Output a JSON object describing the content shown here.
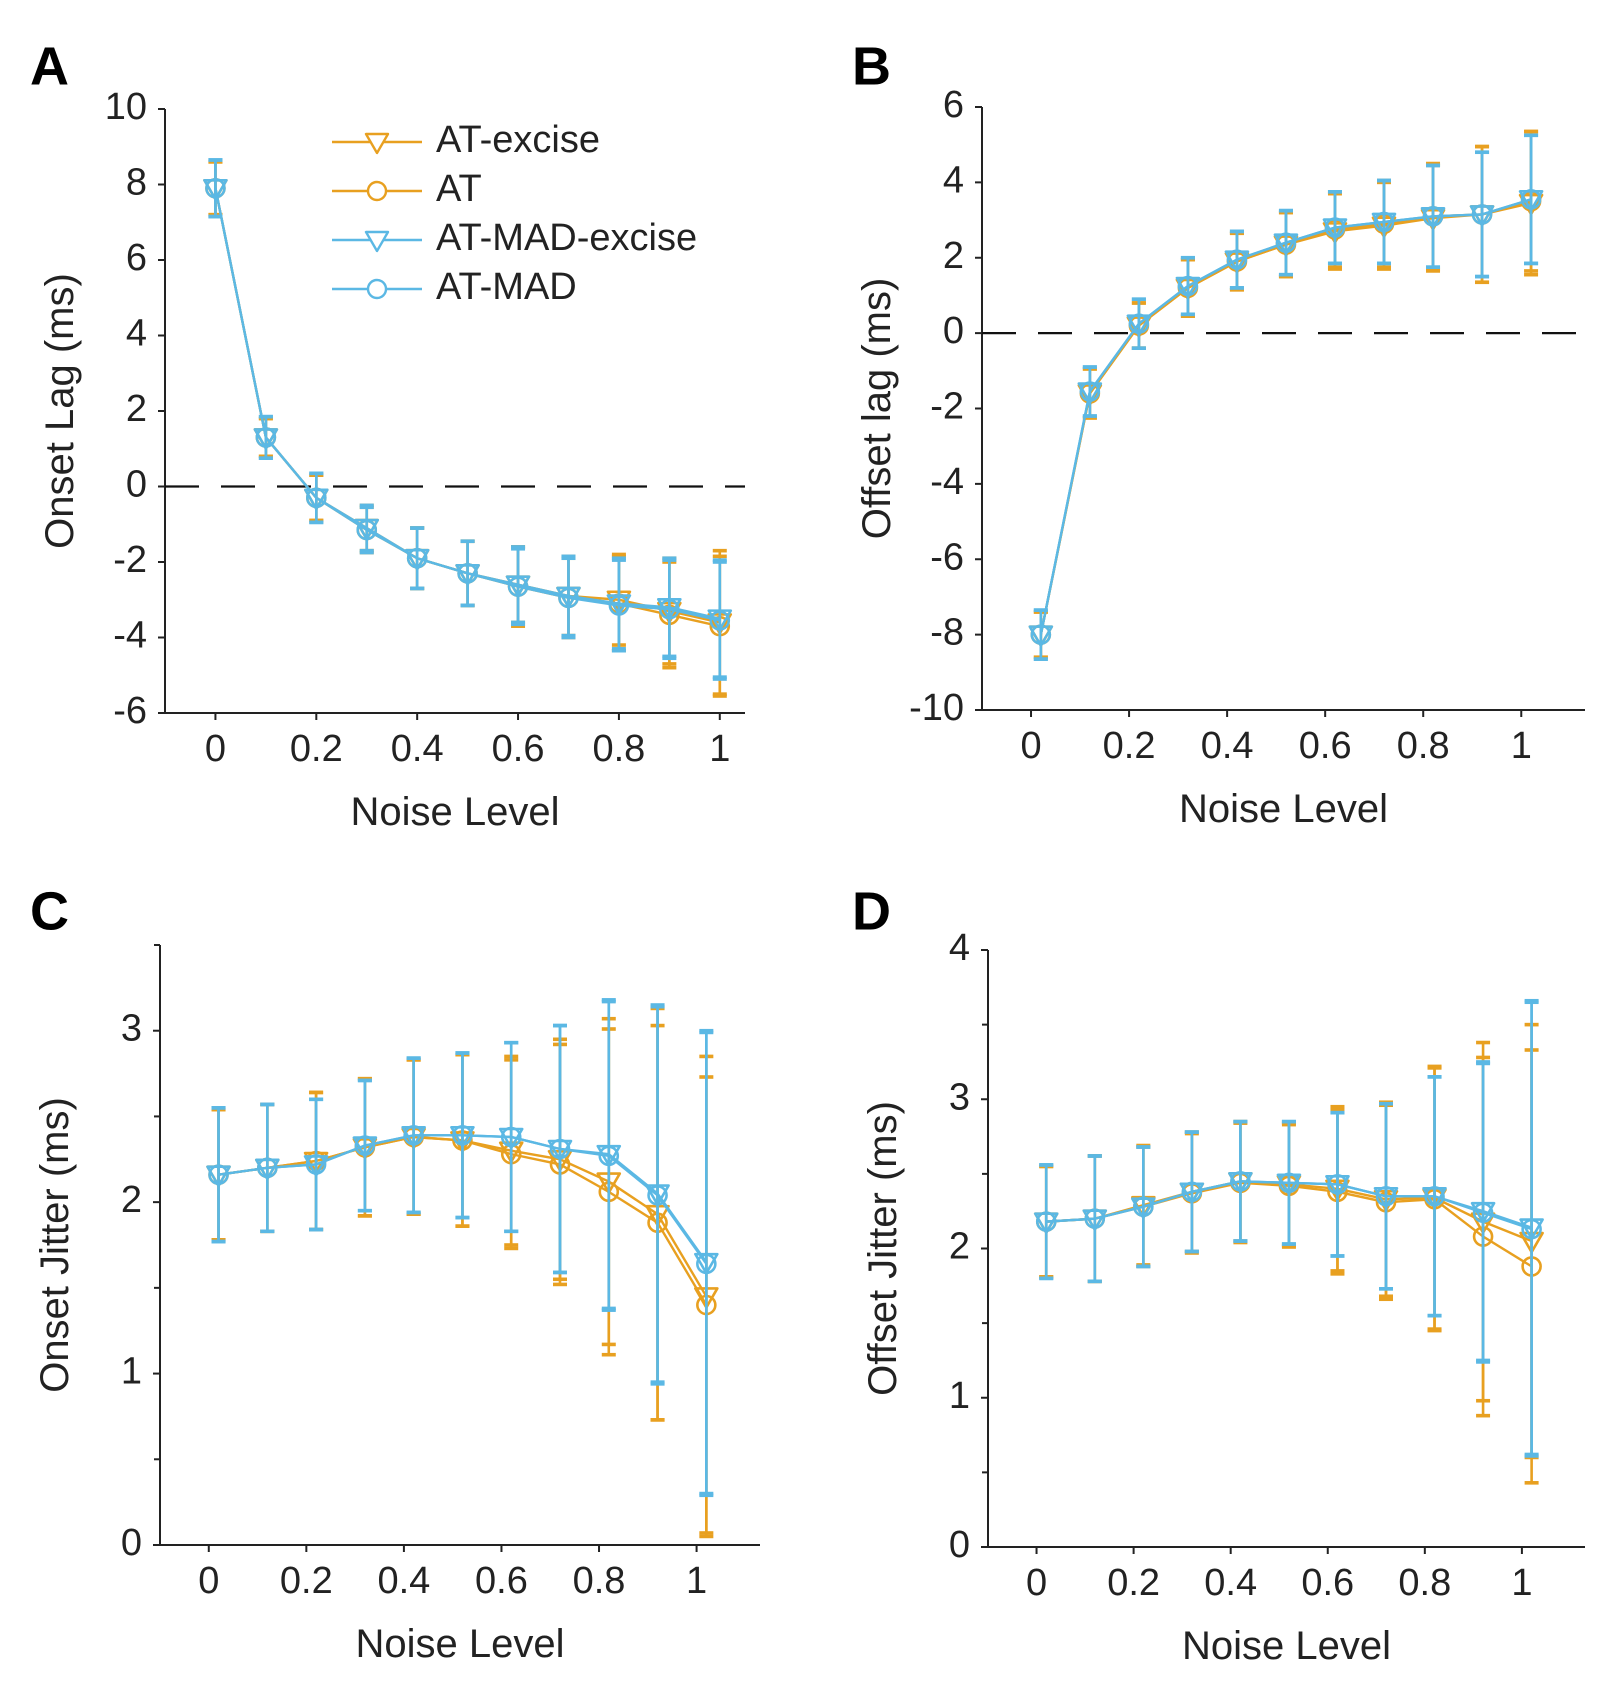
{
  "colors": {
    "orange": "#E8A020",
    "blue": "#5BB8E4"
  },
  "legend": {
    "entries": [
      {
        "label": "AT-excise",
        "color": "orange",
        "marker": "triangle-down"
      },
      {
        "label": "AT",
        "color": "orange",
        "marker": "circle"
      },
      {
        "label": "AT-MAD-excise",
        "color": "blue",
        "marker": "triangle-down"
      },
      {
        "label": "AT-MAD",
        "color": "blue",
        "marker": "circle"
      }
    ]
  },
  "chart_data": [
    {
      "panel": "A",
      "type": "line",
      "xlabel": "Noise Level",
      "ylabel": "Onset Lag (ms)",
      "xlim": [
        -0.1,
        1.05
      ],
      "ylim": [
        -6,
        10
      ],
      "xticks": [
        0,
        0.2,
        0.4,
        0.6,
        0.8,
        1
      ],
      "xtick_labels": [
        "0",
        "0.2",
        "0.4",
        "0.6",
        "0.8",
        "1"
      ],
      "yticks": [
        -6,
        -4,
        -2,
        0,
        2,
        4,
        6,
        8,
        10
      ],
      "ytick_labels": [
        "-6",
        "-4",
        "-2",
        "0",
        "2",
        "4",
        "6",
        "8",
        "10"
      ],
      "minor_yticks": [],
      "zero_line": true,
      "legend": "top-right",
      "x": [
        0,
        0.1,
        0.2,
        0.3,
        0.4,
        0.5,
        0.6,
        0.7,
        0.8,
        0.9,
        1.0
      ],
      "series": [
        {
          "name": "AT-excise",
          "color": "orange",
          "marker": "triangle-down",
          "values": [
            7.9,
            1.3,
            -0.3,
            -1.1,
            -1.9,
            -2.3,
            -2.6,
            -2.9,
            -3.0,
            -3.3,
            -3.6
          ],
          "err": [
            0.7,
            0.5,
            0.6,
            0.6,
            0.8,
            0.85,
            1.0,
            1.05,
            1.2,
            1.4,
            1.9
          ]
        },
        {
          "name": "AT",
          "color": "orange",
          "marker": "circle",
          "values": [
            7.9,
            1.3,
            -0.3,
            -1.15,
            -1.9,
            -2.3,
            -2.65,
            -2.95,
            -3.1,
            -3.4,
            -3.7
          ],
          "err": [
            0.7,
            0.5,
            0.6,
            0.6,
            0.8,
            0.85,
            1.05,
            1.05,
            1.25,
            1.4,
            1.85
          ]
        },
        {
          "name": "AT-MAD-excise",
          "color": "blue",
          "marker": "triangle-down",
          "values": [
            7.9,
            1.3,
            -0.3,
            -1.1,
            -1.9,
            -2.3,
            -2.6,
            -2.9,
            -3.1,
            -3.2,
            -3.5
          ],
          "err": [
            0.75,
            0.55,
            0.65,
            0.6,
            0.8,
            0.85,
            1.0,
            1.05,
            1.2,
            1.3,
            1.55
          ]
        },
        {
          "name": "AT-MAD",
          "color": "blue",
          "marker": "circle",
          "values": [
            7.9,
            1.3,
            -0.3,
            -1.15,
            -1.9,
            -2.3,
            -2.65,
            -2.95,
            -3.15,
            -3.25,
            -3.55
          ],
          "err": [
            0.75,
            0.55,
            0.65,
            0.6,
            0.8,
            0.85,
            1.0,
            1.05,
            1.2,
            1.3,
            1.55
          ]
        }
      ]
    },
    {
      "panel": "B",
      "type": "line",
      "xlabel": "Noise Level",
      "ylabel": "Offset lag (ms)",
      "xlim": [
        -0.1,
        1.13
      ],
      "ylim": [
        -10,
        6
      ],
      "xticks": [
        0,
        0.2,
        0.4,
        0.6,
        0.8,
        1
      ],
      "xtick_labels": [
        "0",
        "0.2",
        "0.4",
        "0.6",
        "0.8",
        "1"
      ],
      "yticks": [
        -10,
        -8,
        -6,
        -4,
        -2,
        0,
        2,
        4,
        6
      ],
      "ytick_labels": [
        "-10",
        "-8",
        "-6",
        "-4",
        "-2",
        "0",
        "2",
        "4",
        "6"
      ],
      "minor_yticks": [],
      "zero_line": true,
      "x": [
        0.02,
        0.12,
        0.22,
        0.32,
        0.42,
        0.52,
        0.62,
        0.72,
        0.82,
        0.92,
        1.02
      ],
      "series": [
        {
          "name": "AT-excise",
          "color": "orange",
          "marker": "triangle-down",
          "values": [
            -8.0,
            -1.6,
            0.2,
            1.2,
            1.9,
            2.35,
            2.7,
            2.85,
            3.05,
            3.15,
            3.45
          ],
          "err": [
            0.6,
            0.65,
            0.6,
            0.75,
            0.75,
            0.85,
            1.0,
            1.15,
            1.4,
            1.8,
            1.9
          ]
        },
        {
          "name": "AT",
          "color": "orange",
          "marker": "circle",
          "values": [
            -8.0,
            -1.6,
            0.2,
            1.2,
            1.9,
            2.35,
            2.75,
            2.9,
            3.1,
            3.15,
            3.5
          ],
          "err": [
            0.6,
            0.65,
            0.6,
            0.75,
            0.75,
            0.85,
            1.0,
            1.15,
            1.4,
            1.8,
            1.85
          ]
        },
        {
          "name": "AT-MAD-excise",
          "color": "blue",
          "marker": "triangle-down",
          "values": [
            -8.0,
            -1.55,
            0.25,
            1.25,
            1.95,
            2.4,
            2.8,
            2.95,
            3.1,
            3.15,
            3.55
          ],
          "err": [
            0.65,
            0.65,
            0.65,
            0.75,
            0.75,
            0.85,
            0.95,
            1.1,
            1.35,
            1.65,
            1.7
          ]
        },
        {
          "name": "AT-MAD",
          "color": "blue",
          "marker": "circle",
          "values": [
            -8.0,
            -1.55,
            0.25,
            1.25,
            1.95,
            2.4,
            2.8,
            2.95,
            3.1,
            3.15,
            3.55
          ],
          "err": [
            0.65,
            0.65,
            0.65,
            0.75,
            0.75,
            0.85,
            0.95,
            1.1,
            1.35,
            1.65,
            1.7
          ]
        }
      ]
    },
    {
      "panel": "C",
      "type": "line",
      "xlabel": "Noise Level",
      "ylabel": "Onset Jitter (ms)",
      "xlim": [
        -0.1,
        1.13
      ],
      "ylim": [
        0,
        3.5
      ],
      "xticks": [
        0,
        0.2,
        0.4,
        0.6,
        0.8,
        1
      ],
      "xtick_labels": [
        "0",
        "0.2",
        "0.4",
        "0.6",
        "0.8",
        "1"
      ],
      "yticks": [
        0,
        1,
        2,
        3
      ],
      "ytick_labels": [
        "0",
        "1",
        "2",
        "3"
      ],
      "minor_yticks": [
        0.5,
        1.5,
        2.5,
        3.5
      ],
      "zero_line": false,
      "x": [
        0.02,
        0.12,
        0.22,
        0.32,
        0.42,
        0.52,
        0.62,
        0.72,
        0.82,
        0.92,
        1.02
      ],
      "series": [
        {
          "name": "AT-excise",
          "color": "orange",
          "marker": "triangle-down",
          "values": [
            2.16,
            2.2,
            2.24,
            2.32,
            2.38,
            2.36,
            2.3,
            2.25,
            2.12,
            1.93,
            1.45
          ],
          "err": [
            0.38,
            0.37,
            0.4,
            0.4,
            0.45,
            0.5,
            0.55,
            0.7,
            0.95,
            1.2,
            1.4
          ]
        },
        {
          "name": "AT",
          "color": "orange",
          "marker": "circle",
          "values": [
            2.16,
            2.2,
            2.24,
            2.32,
            2.38,
            2.36,
            2.28,
            2.22,
            2.06,
            1.88,
            1.4
          ],
          "err": [
            0.38,
            0.37,
            0.4,
            0.4,
            0.45,
            0.5,
            0.55,
            0.7,
            0.95,
            1.15,
            1.33
          ]
        },
        {
          "name": "AT-MAD-excise",
          "color": "blue",
          "marker": "triangle-down",
          "values": [
            2.16,
            2.2,
            2.22,
            2.33,
            2.39,
            2.39,
            2.38,
            2.31,
            2.28,
            2.05,
            1.65
          ],
          "err": [
            0.39,
            0.37,
            0.38,
            0.38,
            0.45,
            0.48,
            0.55,
            0.72,
            0.9,
            1.1,
            1.35
          ]
        },
        {
          "name": "AT-MAD",
          "color": "blue",
          "marker": "circle",
          "values": [
            2.16,
            2.2,
            2.22,
            2.33,
            2.39,
            2.39,
            2.38,
            2.31,
            2.27,
            2.04,
            1.64
          ],
          "err": [
            0.39,
            0.37,
            0.38,
            0.38,
            0.45,
            0.48,
            0.55,
            0.72,
            0.9,
            1.1,
            1.35
          ]
        }
      ]
    },
    {
      "panel": "D",
      "type": "line",
      "xlabel": "Noise Level",
      "ylabel": "Offset Jitter (ms)",
      "xlim": [
        -0.1,
        1.13
      ],
      "ylim": [
        0,
        4
      ],
      "xticks": [
        0,
        0.2,
        0.4,
        0.6,
        0.8,
        1
      ],
      "xtick_labels": [
        "0",
        "0.2",
        "0.4",
        "0.6",
        "0.8",
        "1"
      ],
      "yticks": [
        0,
        1,
        2,
        3,
        4
      ],
      "ytick_labels": [
        "0",
        "1",
        "2",
        "3",
        "4"
      ],
      "minor_yticks": [
        0.5,
        1.5,
        2.5,
        3.5
      ],
      "zero_line": false,
      "x": [
        0.02,
        0.12,
        0.22,
        0.32,
        0.42,
        0.52,
        0.62,
        0.72,
        0.82,
        0.92,
        1.02
      ],
      "series": [
        {
          "name": "AT-excise",
          "color": "orange",
          "marker": "triangle-down",
          "values": [
            2.18,
            2.2,
            2.29,
            2.38,
            2.45,
            2.43,
            2.4,
            2.33,
            2.34,
            2.18,
            2.05
          ],
          "err": [
            0.37,
            0.42,
            0.4,
            0.4,
            0.4,
            0.41,
            0.55,
            0.65,
            0.88,
            1.2,
            1.45
          ]
        },
        {
          "name": "AT",
          "color": "orange",
          "marker": "circle",
          "values": [
            2.18,
            2.2,
            2.28,
            2.37,
            2.44,
            2.42,
            2.38,
            2.31,
            2.33,
            2.08,
            1.88
          ],
          "err": [
            0.37,
            0.42,
            0.4,
            0.4,
            0.4,
            0.41,
            0.55,
            0.65,
            0.88,
            1.2,
            1.45
          ]
        },
        {
          "name": "AT-MAD-excise",
          "color": "blue",
          "marker": "triangle-down",
          "values": [
            2.18,
            2.2,
            2.28,
            2.38,
            2.45,
            2.44,
            2.43,
            2.35,
            2.35,
            2.25,
            2.14
          ],
          "err": [
            0.38,
            0.42,
            0.4,
            0.4,
            0.4,
            0.41,
            0.48,
            0.62,
            0.8,
            1.0,
            1.52
          ]
        },
        {
          "name": "AT-MAD",
          "color": "blue",
          "marker": "circle",
          "values": [
            2.18,
            2.2,
            2.28,
            2.38,
            2.45,
            2.44,
            2.43,
            2.35,
            2.35,
            2.24,
            2.13
          ],
          "err": [
            0.38,
            0.42,
            0.4,
            0.4,
            0.4,
            0.41,
            0.48,
            0.62,
            0.8,
            1.0,
            1.52
          ]
        }
      ]
    }
  ]
}
